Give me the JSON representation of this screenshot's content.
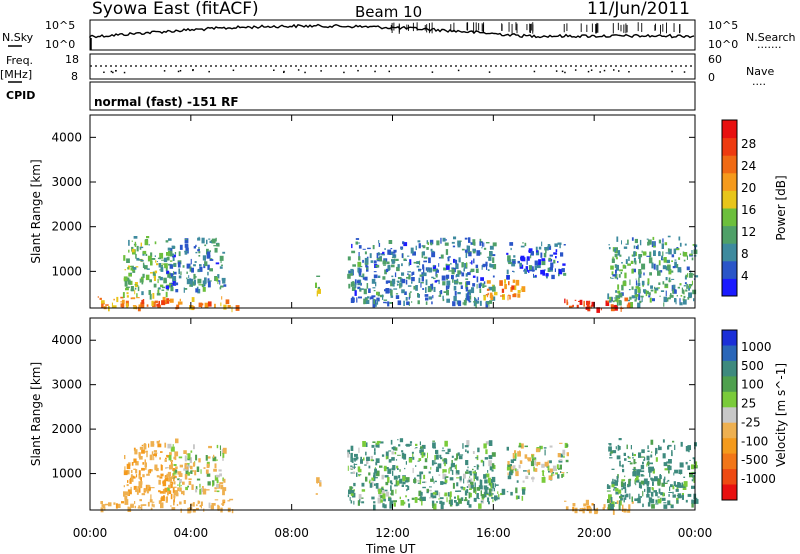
{
  "header": {
    "title": "Syowa East (fitACF)",
    "beam": "Beam 10",
    "date": "11/Jun/2011"
  },
  "top_panel": {
    "nsky_label": "N.Sky",
    "nsky_ticks": [
      "10^5",
      "10^0"
    ],
    "nsearch_label": "N.Search",
    "nsearch_ticks": [
      "10^5",
      "10^0"
    ],
    "freq_label": "Freq.",
    "freq_unit": "[MHz]",
    "freq_ticks": [
      "18",
      "8"
    ],
    "nave_label": "Nave",
    "nave_ticks": [
      "60",
      "0"
    ],
    "cpid_label": "CPID",
    "cpid_text": "normal (fast) -151 RF"
  },
  "x_axis": {
    "label": "Time UT",
    "ticks": [
      "00:00",
      "04:00",
      "08:00",
      "12:00",
      "16:00",
      "20:00",
      "00:00"
    ]
  },
  "power_colorbar": {
    "label": "Power [dB]",
    "ticks": [
      "4",
      "8",
      "12",
      "16",
      "20",
      "24",
      "28"
    ],
    "colors": [
      "#1b1bff",
      "#2a55c8",
      "#3e8a9e",
      "#4fa068",
      "#6cbf3c",
      "#e8c51a",
      "#f59a1c",
      "#f06a14",
      "#ee3a10",
      "#e81010"
    ]
  },
  "velocity_colorbar": {
    "label": "Velocity [m s^-1]",
    "ticks": [
      "1000",
      "500",
      "100",
      "25",
      "-25",
      "-100",
      "-500",
      "-1000"
    ],
    "colors": [
      "#1b2fd8",
      "#2a66b8",
      "#3e8a7e",
      "#4fa04e",
      "#7acb3a",
      "#c8c8c8",
      "#eeb050",
      "#f49a1c",
      "#f27618",
      "#ee4a12",
      "#e81010"
    ]
  },
  "chart_data": [
    {
      "type": "heatmap",
      "title": "Power",
      "xlabel": "Time UT",
      "ylabel": "Slant Range [km]",
      "xlim": [
        0,
        24
      ],
      "ylim": [
        180,
        4500
      ],
      "yticks": [
        "1000",
        "2000",
        "3000",
        "4000"
      ],
      "colorbar": "Power [dB]",
      "clim": [
        0,
        32
      ],
      "regions": [
        {
          "t0": 0.3,
          "t1": 5.8,
          "r0": 200,
          "r1": 450,
          "value": 22
        },
        {
          "t0": 1.3,
          "t1": 3.2,
          "r0": 450,
          "r1": 1800,
          "value": 12
        },
        {
          "t0": 3.0,
          "t1": 5.3,
          "r0": 600,
          "r1": 1800,
          "value": 8
        },
        {
          "t0": 8.9,
          "t1": 9.1,
          "r0": 500,
          "r1": 1000,
          "value": 14
        },
        {
          "t0": 10.2,
          "t1": 16.0,
          "r0": 300,
          "r1": 1800,
          "value": 8
        },
        {
          "t0": 15.6,
          "t1": 17.2,
          "r0": 450,
          "r1": 850,
          "value": 22
        },
        {
          "t0": 16.5,
          "t1": 18.8,
          "r0": 900,
          "r1": 1700,
          "value": 6
        },
        {
          "t0": 18.8,
          "t1": 21.5,
          "r0": 180,
          "r1": 420,
          "value": 28
        },
        {
          "t0": 20.5,
          "t1": 24.0,
          "r0": 300,
          "r1": 1800,
          "value": 10
        }
      ]
    },
    {
      "type": "heatmap",
      "title": "Velocity",
      "xlabel": "Time UT",
      "ylabel": "Slant Range [km]",
      "xlim": [
        0,
        24
      ],
      "ylim": [
        180,
        4500
      ],
      "yticks": [
        "1000",
        "2000",
        "3000",
        "4000"
      ],
      "colorbar": "Velocity [m s^-1]",
      "clim": [
        -1000,
        1000
      ],
      "regions": [
        {
          "t0": 0.3,
          "t1": 5.8,
          "r0": 200,
          "r1": 450,
          "value": -180
        },
        {
          "t0": 1.3,
          "t1": 3.4,
          "r0": 450,
          "r1": 1800,
          "value": -300
        },
        {
          "t0": 3.0,
          "t1": 5.3,
          "r0": 600,
          "r1": 1700,
          "value": -60
        },
        {
          "t0": 8.9,
          "t1": 9.1,
          "r0": 500,
          "r1": 1000,
          "value": -120
        },
        {
          "t0": 10.2,
          "t1": 16.0,
          "r0": 300,
          "r1": 1800,
          "value": 80
        },
        {
          "t0": 15.6,
          "t1": 17.2,
          "r0": 450,
          "r1": 850,
          "value": 60
        },
        {
          "t0": 16.5,
          "t1": 19.0,
          "r0": 900,
          "r1": 1700,
          "value": 10
        },
        {
          "t0": 18.8,
          "t1": 21.5,
          "r0": 180,
          "r1": 420,
          "value": -200
        },
        {
          "t0": 20.5,
          "t1": 24.0,
          "r0": 300,
          "r1": 1800,
          "value": 120
        }
      ]
    }
  ]
}
